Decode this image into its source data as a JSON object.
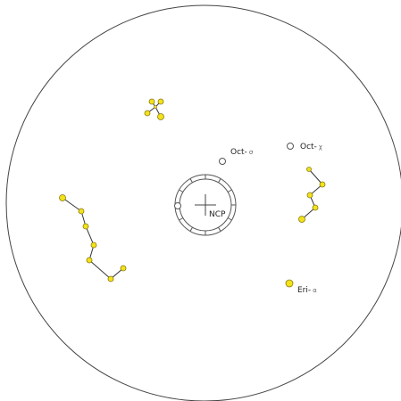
{
  "labels": {
    "ncp": "NCP",
    "oct_sigma_base": "Oct-",
    "oct_sigma_greek": "σ",
    "oct_chi_base": "Oct-",
    "oct_chi_greek": "χ",
    "eri_alpha_base": "Eri-",
    "eri_alpha_greek": "α"
  },
  "colors": {
    "star_fill": "#f2e21a",
    "star_stroke": "#8a7a10",
    "line": "#333333",
    "outline": "#444444",
    "hollow_fill": "#ffffff",
    "hollow_stroke": "#555555",
    "background": "#ffffff"
  }
}
